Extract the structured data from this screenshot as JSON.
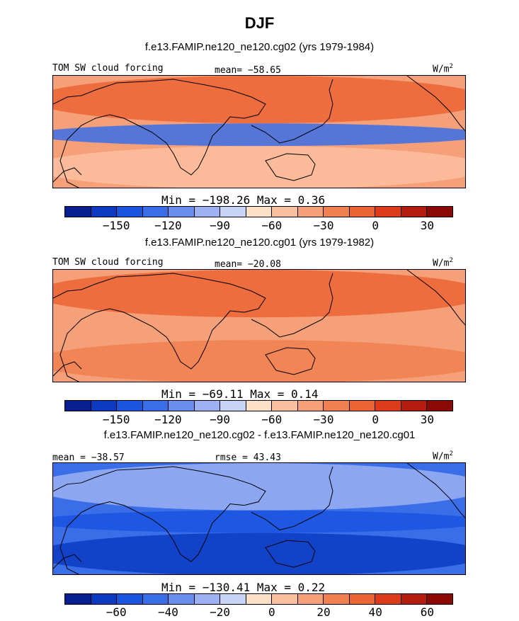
{
  "title": "DJF",
  "units_label": "W/m",
  "units_exp": "2",
  "chart_data": [
    {
      "type": "heatmap",
      "subtitle": "f.e13.FAMIP.ne120_ne120.cg02 (yrs 1979-1984)",
      "field_label": "TOM SW cloud forcing",
      "stat_left": "",
      "stat_center": "mean= −58.65",
      "min_max": "Min = −198.26 Max =   0.36",
      "colorbar": {
        "colors": [
          "#0a1f8f",
          "#0c3bc2",
          "#1a55e0",
          "#3a6ee8",
          "#6a8ef0",
          "#9cb0f2",
          "#c6d4f6",
          "#fde0c8",
          "#f9c0a0",
          "#f5a078",
          "#f08050",
          "#ec6434",
          "#dc3c1a",
          "#b41c10",
          "#8c0a06"
        ],
        "tick_labels": [
          "−150",
          "−120",
          "−90",
          "−60",
          "−30",
          "0",
          "30"
        ],
        "tick_positions": [
          2,
          4,
          6,
          8,
          10,
          12,
          14
        ]
      },
      "map_fill": "#f5a078",
      "map_bands": [
        {
          "color": "#ec6434",
          "region": "north"
        },
        {
          "color": "#3a6ee8",
          "region": "equator"
        },
        {
          "color": "#fbbfa0",
          "region": "south"
        }
      ]
    },
    {
      "type": "heatmap",
      "subtitle": "f.e13.FAMIP.ne120_ne120.cg01 (yrs 1979-1982)",
      "field_label": "TOM SW cloud forcing",
      "stat_left": "",
      "stat_center": "mean= −20.08",
      "min_max": "Min = −69.11 Max =   0.14",
      "colorbar": {
        "colors": [
          "#0a1f8f",
          "#0c3bc2",
          "#1a55e0",
          "#3a6ee8",
          "#6a8ef0",
          "#9cb0f2",
          "#c6d4f6",
          "#fde0c8",
          "#f9c0a0",
          "#f5a078",
          "#f08050",
          "#ec6434",
          "#dc3c1a",
          "#b41c10",
          "#8c0a06"
        ],
        "tick_labels": [
          "−150",
          "−120",
          "−90",
          "−60",
          "−30",
          "0",
          "30"
        ],
        "tick_positions": [
          2,
          4,
          6,
          8,
          10,
          12,
          14
        ]
      },
      "map_fill": "#f5a078",
      "map_bands": [
        {
          "color": "#ec6434",
          "region": "north"
        },
        {
          "color": "#f5a078",
          "region": "equator"
        },
        {
          "color": "#f08050",
          "region": "south"
        }
      ]
    },
    {
      "type": "heatmap",
      "subtitle": "f.e13.FAMIP.ne120_ne120.cg02 - f.e13.FAMIP.ne120_ne120.cg01",
      "field_label": "",
      "stat_left": "mean = −38.57",
      "stat_center": "rmse =  43.43",
      "min_max": "Min = −130.41 Max =   0.22",
      "colorbar": {
        "colors": [
          "#0a1f8f",
          "#0c3bc2",
          "#1a55e0",
          "#3a6ee8",
          "#6a8ef0",
          "#9cb0f2",
          "#c6d4f6",
          "#fde0c8",
          "#f9c0a0",
          "#f5a078",
          "#f08050",
          "#ec6434",
          "#dc3c1a",
          "#b41c10",
          "#8c0a06"
        ],
        "tick_labels": [
          "−60",
          "−40",
          "−20",
          "0",
          "20",
          "40",
          "60"
        ],
        "tick_positions": [
          2,
          4,
          6,
          8,
          10,
          12,
          14
        ]
      },
      "map_fill": "#3a6ee8",
      "map_bands": [
        {
          "color": "#9cb0f2",
          "region": "north"
        },
        {
          "color": "#1a55e0",
          "region": "equator"
        },
        {
          "color": "#0c3bc2",
          "region": "south"
        }
      ]
    }
  ]
}
